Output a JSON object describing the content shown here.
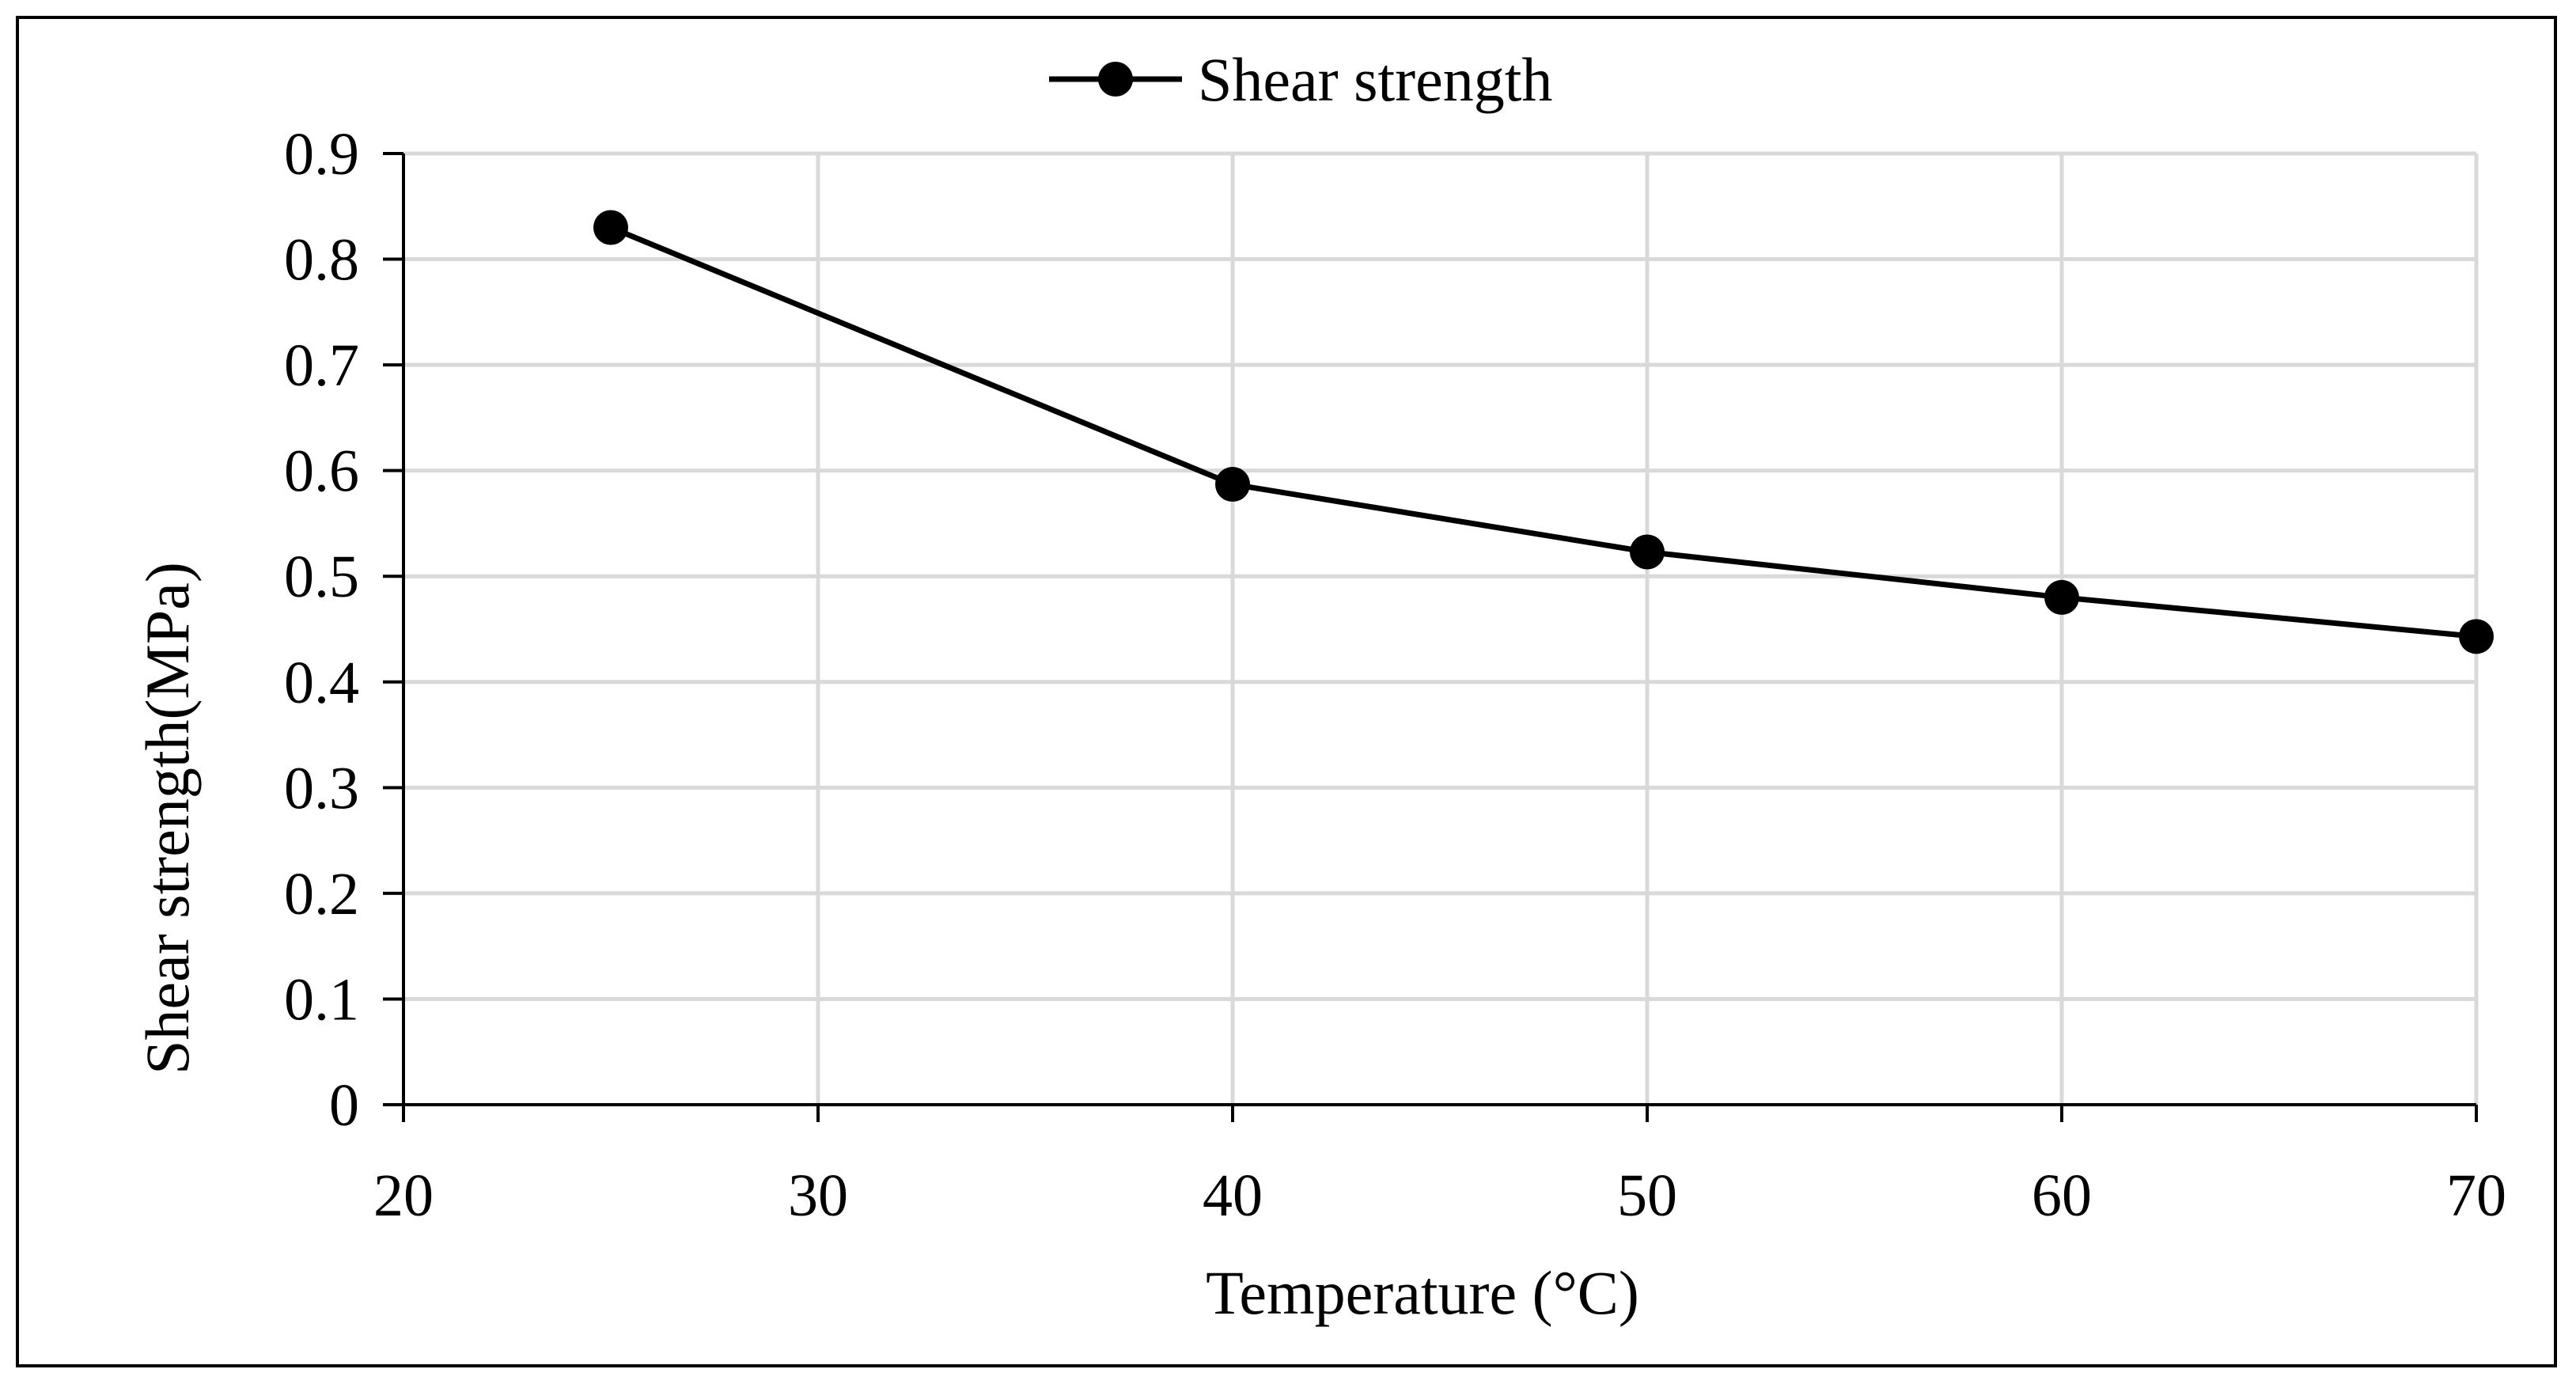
{
  "chart_data": {
    "type": "line",
    "title": "",
    "xlabel": "Temperature (°C)",
    "ylabel": "Shear strength(MPa)",
    "xlim": [
      20,
      70
    ],
    "ylim": [
      0,
      0.9
    ],
    "x_ticks": [
      20,
      30,
      40,
      50,
      60,
      70
    ],
    "y_ticks": [
      0,
      0.1,
      0.2,
      0.3,
      0.4,
      0.5,
      0.6,
      0.7,
      0.8,
      0.9
    ],
    "x_tick_labels": [
      "20",
      "30",
      "40",
      "50",
      "60",
      "70"
    ],
    "y_tick_labels": [
      "0",
      "0.1",
      "0.2",
      "0.3",
      "0.4",
      "0.5",
      "0.6",
      "0.7",
      "0.8",
      "0.9"
    ],
    "grid": true,
    "legend_position": "top-center",
    "series": [
      {
        "name": "Shear strength",
        "x": [
          25,
          40,
          50,
          60,
          70
        ],
        "y": [
          0.83,
          0.587,
          0.523,
          0.48,
          0.443
        ],
        "color": "#000000",
        "marker": "circle"
      }
    ]
  },
  "colors": {
    "grid": "#d9d9d9",
    "axis": "#000000",
    "line": "#000000"
  }
}
